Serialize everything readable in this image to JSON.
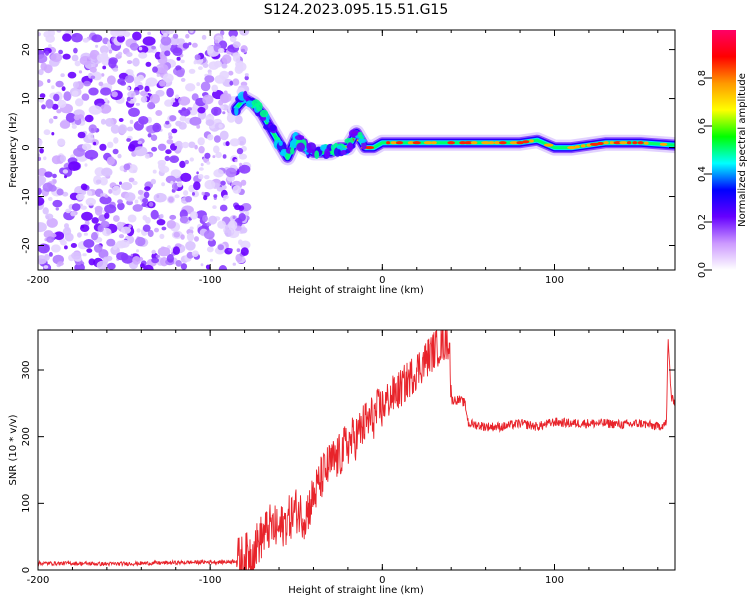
{
  "title": "S124.2023.095.15.51.G15",
  "colors": {
    "snr_line": "#e8232a",
    "axis": "#000000",
    "colorbar": [
      "#ffffff",
      "#cc99ff",
      "#6600ff",
      "#0000ff",
      "#00ffff",
      "#00ff00",
      "#ffff00",
      "#ff9900",
      "#ff0000",
      "#ff0066"
    ]
  },
  "chart_data": [
    {
      "type": "heatmap",
      "name": "spectrogram",
      "title": "",
      "xlabel": "Height of straight line (km)",
      "ylabel": "Frequency (Hz)",
      "xlim": [
        -200,
        170
      ],
      "ylim": [
        -25,
        24
      ],
      "x_ticks": [
        "-200",
        "-100",
        "0",
        "100"
      ],
      "y_ticks": [
        "-20",
        "-10",
        "0",
        "10",
        "20"
      ],
      "colorbar": {
        "label": "Normalized spectral amplitude",
        "range": [
          0,
          1
        ],
        "ticks": [
          "0.0",
          "0.2",
          "0.4",
          "0.6",
          "0.8"
        ]
      },
      "noise_region_x": [
        -200,
        -83
      ],
      "ridge": {
        "x": [
          -85,
          -80,
          -75,
          -70,
          -65,
          -60,
          -55,
          -50,
          -45,
          -40,
          -35,
          -30,
          -25,
          -20,
          -15,
          -10,
          -5,
          0,
          20,
          40,
          60,
          80,
          90,
          100,
          110,
          130,
          150,
          170
        ],
        "freq": [
          8,
          10,
          9,
          7,
          4,
          1,
          -2,
          2,
          0,
          -1,
          -1,
          -1,
          0,
          0,
          3,
          0,
          0,
          1,
          1,
          1,
          1,
          1,
          1.5,
          0,
          0,
          1,
          1,
          0.5
        ]
      }
    },
    {
      "type": "line",
      "name": "snr",
      "title": "",
      "xlabel": "Height of straight line (km)",
      "ylabel": "SNR (10 * v/v)",
      "xlim": [
        -200,
        170
      ],
      "ylim": [
        0,
        360
      ],
      "x_ticks": [
        "-200",
        "-100",
        "0",
        "100"
      ],
      "y_ticks": [
        "0",
        "100",
        "200",
        "300"
      ],
      "series": [
        {
          "x": [
            -200,
            -180,
            -160,
            -140,
            -120,
            -100,
            -90,
            -85,
            -80,
            -75,
            -70,
            -65,
            -60,
            -55,
            -50,
            -45,
            -40,
            -35,
            -30,
            -25,
            -20,
            -15,
            -10,
            -5,
            0,
            5,
            10,
            15,
            20,
            25,
            30,
            35,
            39,
            40,
            45,
            48,
            50,
            60,
            70,
            80,
            90,
            100,
            110,
            120,
            130,
            140,
            150,
            160,
            165,
            166,
            168,
            170
          ],
          "y": [
            10,
            10,
            9,
            10,
            11,
            12,
            12,
            14,
            20,
            30,
            50,
            65,
            60,
            75,
            90,
            80,
            110,
            140,
            160,
            170,
            190,
            200,
            220,
            230,
            245,
            260,
            270,
            285,
            300,
            315,
            330,
            340,
            345,
            255,
            255,
            250,
            220,
            215,
            215,
            220,
            215,
            222,
            220,
            220,
            220,
            218,
            220,
            215,
            220,
            345,
            255,
            255
          ]
        }
      ]
    }
  ]
}
